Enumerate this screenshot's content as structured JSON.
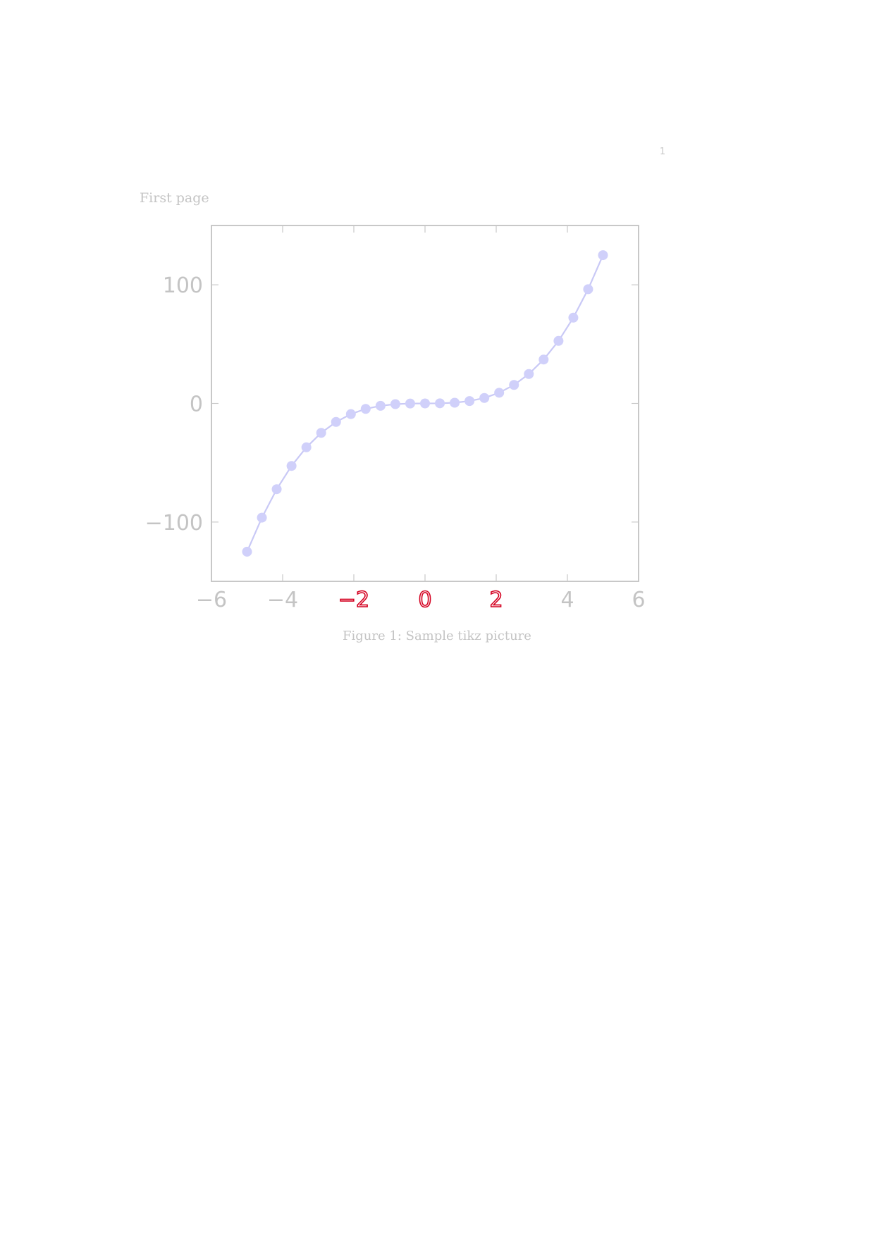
{
  "page": {
    "page_number": "1",
    "header": "First page"
  },
  "figure": {
    "caption": "Figure 1: Sample tikz picture"
  },
  "colors": {
    "frame": "#c8c8c8",
    "tick_label": "#c4c4c4",
    "highlight_tick_label": "#d40020",
    "series": "#c9c9f6",
    "marker": "#d0d0fa"
  },
  "chart_data": {
    "type": "line",
    "title": "",
    "xlabel": "",
    "ylabel": "",
    "xlim": [
      -6,
      6
    ],
    "ylim": [
      -150,
      150
    ],
    "grid": false,
    "legend": "none",
    "x_ticks": [
      {
        "value": -6,
        "label": "−6",
        "highlight": false
      },
      {
        "value": -4,
        "label": "−4",
        "highlight": false
      },
      {
        "value": -2,
        "label": "−2",
        "highlight": true
      },
      {
        "value": 0,
        "label": "0",
        "highlight": true
      },
      {
        "value": 2,
        "label": "2",
        "highlight": true
      },
      {
        "value": 4,
        "label": "4",
        "highlight": false
      },
      {
        "value": 6,
        "label": "6",
        "highlight": false
      }
    ],
    "y_ticks": [
      {
        "value": -100,
        "label": "−100"
      },
      {
        "value": 0,
        "label": "0"
      },
      {
        "value": 100,
        "label": "100"
      }
    ],
    "series": [
      {
        "markers": true,
        "x": [
          -5,
          -4.583,
          -4.167,
          -3.75,
          -3.333,
          -2.917,
          -2.5,
          -2.083,
          -1.667,
          -1.25,
          -0.833,
          -0.417,
          0,
          0.417,
          0.833,
          1.25,
          1.667,
          2.083,
          2.5,
          2.917,
          3.333,
          3.75,
          4.167,
          4.583,
          5
        ],
        "y": [
          -125,
          -96.3,
          -72.3,
          -52.7,
          -37,
          -24.8,
          -15.6,
          -9,
          -4.6,
          -2,
          -0.6,
          -0.1,
          0,
          0.1,
          0.6,
          2,
          4.6,
          9,
          15.6,
          24.8,
          37,
          52.7,
          72.3,
          96.3,
          125
        ]
      }
    ]
  }
}
